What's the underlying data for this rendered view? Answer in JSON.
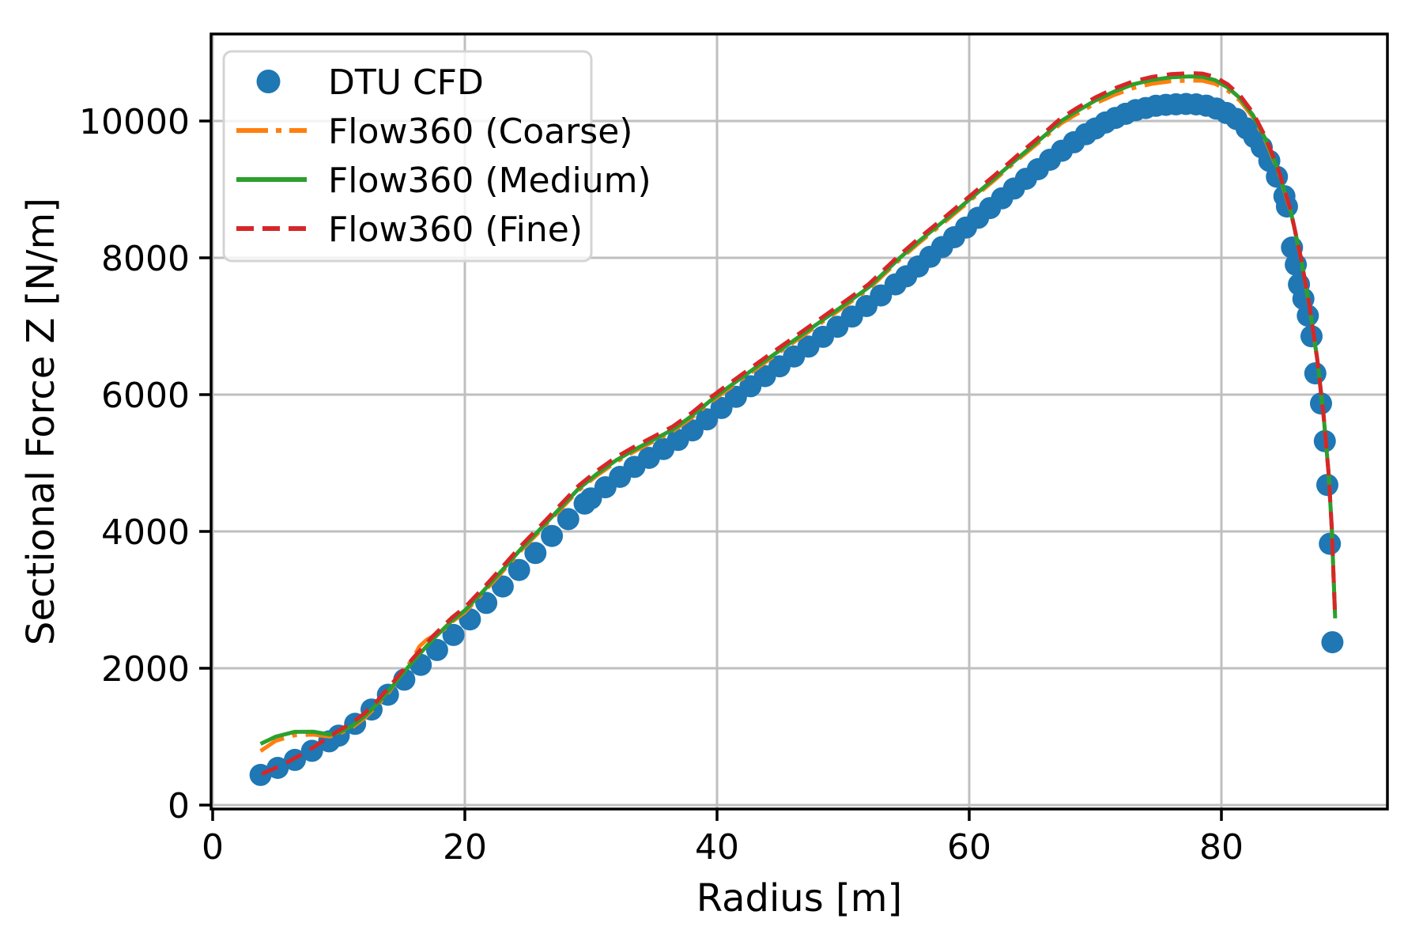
{
  "chart_data": {
    "type": "line+scatter",
    "title": "",
    "grid": {
      "visible": true,
      "color": "#bfbfbf"
    },
    "background": "#ffffff",
    "x_axis": {
      "label": "Radius [m]",
      "range": [
        -0.13,
        93.2
      ],
      "ticks": [
        {
          "v": 0,
          "label": "0"
        },
        {
          "v": 20,
          "label": "20"
        },
        {
          "v": 40,
          "label": "40"
        },
        {
          "v": 60,
          "label": "60"
        },
        {
          "v": 80,
          "label": "80"
        }
      ]
    },
    "y_axis": {
      "label": "Sectional Force Z [N/m]",
      "range": [
        -60,
        11270
      ],
      "ticks": [
        {
          "v": 0,
          "label": "0"
        },
        {
          "v": 2000,
          "label": "2000"
        },
        {
          "v": 4000,
          "label": "4000"
        },
        {
          "v": 6000,
          "label": "6000"
        },
        {
          "v": 8000,
          "label": "8000"
        },
        {
          "v": 10000,
          "label": "10000"
        }
      ]
    },
    "legend": {
      "position": "upper left",
      "frame": true,
      "frame_alpha": 0.8,
      "border_color": "#d4d4d4"
    },
    "series": [
      {
        "id": "dtu-cfd",
        "label": "DTU CFD",
        "kind": "scatter",
        "color": "#1f77b4",
        "marker_radius": 14,
        "anchors": [
          [
            3.8,
            440
          ],
          [
            5,
            530
          ],
          [
            6.2,
            630
          ],
          [
            7.4,
            745
          ],
          [
            8.6,
            865
          ],
          [
            9.8,
            990
          ],
          [
            11,
            1140
          ],
          [
            12.2,
            1330
          ],
          [
            13.5,
            1545
          ],
          [
            15,
            1800
          ],
          [
            16.2,
            2000
          ],
          [
            18,
            2300
          ],
          [
            20,
            2640
          ],
          [
            22,
            3010
          ],
          [
            24,
            3380
          ],
          [
            26,
            3760
          ],
          [
            27.5,
            4050
          ],
          [
            29,
            4330
          ],
          [
            30.5,
            4560
          ],
          [
            32,
            4760
          ],
          [
            33.5,
            4950
          ],
          [
            35,
            5120
          ],
          [
            36.5,
            5290
          ],
          [
            38,
            5470
          ],
          [
            39.5,
            5680
          ],
          [
            41,
            5900
          ],
          [
            43,
            6170
          ],
          [
            45,
            6420
          ],
          [
            47,
            6670
          ],
          [
            49,
            6920
          ],
          [
            51,
            7180
          ],
          [
            53,
            7450
          ],
          [
            55,
            7730
          ],
          [
            57,
            8030
          ],
          [
            59,
            8330
          ],
          [
            61,
            8630
          ],
          [
            63,
            8930
          ],
          [
            65,
            9230
          ],
          [
            67,
            9520
          ],
          [
            69,
            9780
          ],
          [
            71,
            10000
          ],
          [
            73,
            10150
          ],
          [
            75,
            10230
          ],
          [
            77,
            10250
          ],
          [
            78.5,
            10240
          ],
          [
            80,
            10160
          ],
          [
            81.2,
            10030
          ],
          [
            82.3,
            9840
          ],
          [
            83.3,
            9590
          ],
          [
            84.2,
            9280
          ],
          [
            85,
            8900
          ],
          [
            85.2,
            8750
          ],
          [
            85.45,
            8400
          ],
          [
            85.6,
            8150
          ],
          [
            85.9,
            7900
          ],
          [
            86.1,
            7640
          ],
          [
            86.5,
            7400
          ],
          [
            86.9,
            7120
          ],
          [
            87.2,
            6800
          ],
          [
            87.4,
            6360
          ],
          [
            87.9,
            5870
          ],
          [
            88.2,
            5320
          ],
          [
            88.4,
            4680
          ],
          [
            88.6,
            3820
          ],
          [
            88.8,
            2380
          ]
        ],
        "marker_segments": [
          [
            3.8,
            10,
            1.36
          ],
          [
            10,
            30,
            1.3
          ],
          [
            30,
            55,
            1.15
          ],
          [
            55,
            70,
            0.95
          ],
          [
            70,
            82,
            0.8
          ],
          [
            82,
            85.05,
            0.6
          ]
        ],
        "marker_tail_r": [
          85.2,
          85.6,
          85.9,
          86.15,
          86.5,
          86.85,
          87.15,
          87.45,
          87.9,
          88.2,
          88.4,
          88.6,
          88.8
        ]
      },
      {
        "id": "flow360-coarse",
        "label": "Flow360 (Coarse)",
        "kind": "line",
        "color": "#ff7f0e",
        "dash": "34 11 6 11",
        "width": 5,
        "points": [
          [
            3.8,
            790
          ],
          [
            5,
            940
          ],
          [
            6.5,
            1020
          ],
          [
            8,
            1030
          ],
          [
            9.3,
            1000
          ],
          [
            10,
            1040
          ],
          [
            11,
            1125
          ],
          [
            12,
            1265
          ],
          [
            13,
            1445
          ],
          [
            14,
            1655
          ],
          [
            15,
            1930
          ],
          [
            15.8,
            2120
          ],
          [
            16.4,
            2320
          ],
          [
            17,
            2420
          ],
          [
            17.6,
            2480
          ],
          [
            18.3,
            2560
          ],
          [
            19,
            2680
          ],
          [
            20,
            2820
          ],
          [
            21.5,
            3110
          ],
          [
            23,
            3415
          ],
          [
            24.5,
            3730
          ],
          [
            25.8,
            3975
          ],
          [
            27.5,
            4305
          ],
          [
            29,
            4595
          ],
          [
            30.5,
            4820
          ],
          [
            32,
            5015
          ],
          [
            33.5,
            5175
          ],
          [
            35,
            5320
          ],
          [
            36.5,
            5465
          ],
          [
            38,
            5665
          ],
          [
            39.5,
            5890
          ],
          [
            40.4,
            6015
          ],
          [
            42,
            6230
          ],
          [
            44,
            6495
          ],
          [
            46,
            6755
          ],
          [
            48,
            7015
          ],
          [
            50,
            7275
          ],
          [
            52,
            7540
          ],
          [
            54.5,
            7975
          ],
          [
            56,
            8215
          ],
          [
            58,
            8515
          ],
          [
            60,
            8825
          ],
          [
            62,
            9135
          ],
          [
            64,
            9455
          ],
          [
            66,
            9760
          ],
          [
            67.3,
            9965
          ],
          [
            68.5,
            10100
          ],
          [
            70,
            10255
          ],
          [
            71.5,
            10380
          ],
          [
            73,
            10480
          ],
          [
            74.5,
            10545
          ],
          [
            76,
            10580
          ],
          [
            77.5,
            10592
          ],
          [
            78.5,
            10588
          ],
          [
            79.5,
            10545
          ],
          [
            80.5,
            10445
          ],
          [
            81.5,
            10290
          ],
          [
            82.5,
            10055
          ],
          [
            83.5,
            9715
          ],
          [
            84.5,
            9265
          ],
          [
            85.5,
            8670
          ],
          [
            86.3,
            7995
          ],
          [
            87,
            7275
          ],
          [
            87.6,
            6515
          ],
          [
            88.1,
            5695
          ],
          [
            88.5,
            4845
          ],
          [
            88.75,
            4045
          ],
          [
            88.9,
            3295
          ],
          [
            89.02,
            2725
          ]
        ]
      },
      {
        "id": "flow360-medium",
        "label": "Flow360 (Medium)",
        "kind": "line",
        "color": "#2ca02c",
        "dash": null,
        "width": 5,
        "points": [
          [
            3.8,
            895
          ],
          [
            5,
            1000
          ],
          [
            6.5,
            1070
          ],
          [
            8,
            1072
          ],
          [
            9.3,
            1030
          ],
          [
            10,
            1058
          ],
          [
            11,
            1150
          ],
          [
            12,
            1290
          ],
          [
            13,
            1470
          ],
          [
            14,
            1680
          ],
          [
            15,
            1905
          ],
          [
            16,
            2125
          ],
          [
            17.5,
            2430
          ],
          [
            19,
            2700
          ],
          [
            20,
            2845
          ],
          [
            21.5,
            3135
          ],
          [
            23,
            3440
          ],
          [
            24.5,
            3755
          ],
          [
            25.8,
            4000
          ],
          [
            27.5,
            4330
          ],
          [
            29,
            4620
          ],
          [
            30.5,
            4845
          ],
          [
            32,
            5040
          ],
          [
            33.5,
            5200
          ],
          [
            35,
            5345
          ],
          [
            36.5,
            5490
          ],
          [
            38,
            5690
          ],
          [
            39.5,
            5915
          ],
          [
            40.4,
            6040
          ],
          [
            42,
            6255
          ],
          [
            44,
            6520
          ],
          [
            46,
            6780
          ],
          [
            48,
            7040
          ],
          [
            50,
            7300
          ],
          [
            52,
            7565
          ],
          [
            54.5,
            8000
          ],
          [
            56,
            8240
          ],
          [
            58,
            8540
          ],
          [
            60,
            8850
          ],
          [
            62,
            9160
          ],
          [
            64,
            9480
          ],
          [
            66,
            9790
          ],
          [
            67.3,
            10000
          ],
          [
            68.5,
            10140
          ],
          [
            70,
            10300
          ],
          [
            71.5,
            10430
          ],
          [
            73,
            10535
          ],
          [
            74.5,
            10600
          ],
          [
            76,
            10638
          ],
          [
            77.5,
            10652
          ],
          [
            78.5,
            10645
          ],
          [
            79.5,
            10598
          ],
          [
            80.5,
            10490
          ],
          [
            81.5,
            10330
          ],
          [
            82.5,
            10085
          ],
          [
            83.5,
            9735
          ],
          [
            84.5,
            9280
          ],
          [
            85.5,
            8680
          ],
          [
            86.3,
            8000
          ],
          [
            87,
            7280
          ],
          [
            87.6,
            6520
          ],
          [
            88.1,
            5700
          ],
          [
            88.5,
            4850
          ],
          [
            88.75,
            4050
          ],
          [
            88.9,
            3300
          ],
          [
            89.02,
            2730
          ]
        ]
      },
      {
        "id": "flow360-fine",
        "label": "Flow360 (Fine)",
        "kind": "line",
        "color": "#d62728",
        "dash": "22 12",
        "width": 5,
        "points": [
          [
            3.9,
            455
          ],
          [
            5,
            545
          ],
          [
            6,
            635
          ],
          [
            7,
            735
          ],
          [
            8,
            845
          ],
          [
            8.8,
            945
          ],
          [
            9.4,
            1015
          ],
          [
            10,
            1090
          ],
          [
            11,
            1195
          ],
          [
            12,
            1335
          ],
          [
            13,
            1515
          ],
          [
            14,
            1725
          ],
          [
            15,
            1950
          ],
          [
            16,
            2170
          ],
          [
            17.5,
            2475
          ],
          [
            19,
            2745
          ],
          [
            20,
            2890
          ],
          [
            21.5,
            3180
          ],
          [
            23,
            3485
          ],
          [
            24.5,
            3800
          ],
          [
            25.8,
            4045
          ],
          [
            27.5,
            4375
          ],
          [
            29,
            4665
          ],
          [
            30.5,
            4890
          ],
          [
            32,
            5085
          ],
          [
            33.5,
            5245
          ],
          [
            35,
            5390
          ],
          [
            36.5,
            5535
          ],
          [
            38,
            5735
          ],
          [
            39.5,
            5960
          ],
          [
            40.4,
            6085
          ],
          [
            42,
            6300
          ],
          [
            44,
            6565
          ],
          [
            46,
            6825
          ],
          [
            48,
            7085
          ],
          [
            50,
            7345
          ],
          [
            52,
            7610
          ],
          [
            54.5,
            8045
          ],
          [
            56,
            8285
          ],
          [
            58,
            8585
          ],
          [
            60,
            8895
          ],
          [
            62,
            9205
          ],
          [
            64,
            9525
          ],
          [
            66,
            9835
          ],
          [
            67.3,
            10045
          ],
          [
            68.5,
            10185
          ],
          [
            70,
            10345
          ],
          [
            71.5,
            10475
          ],
          [
            73,
            10580
          ],
          [
            74.5,
            10645
          ],
          [
            76,
            10685
          ],
          [
            77.5,
            10700
          ],
          [
            78.5,
            10692
          ],
          [
            79.5,
            10645
          ],
          [
            80.5,
            10535
          ],
          [
            81.5,
            10370
          ],
          [
            82.5,
            10120
          ],
          [
            83.5,
            9765
          ],
          [
            84.5,
            9300
          ],
          [
            85.5,
            8690
          ],
          [
            86.3,
            8005
          ],
          [
            87,
            7285
          ],
          [
            87.6,
            6522
          ],
          [
            88.1,
            5702
          ],
          [
            88.5,
            4852
          ],
          [
            88.75,
            4052
          ],
          [
            88.9,
            3302
          ],
          [
            89.02,
            2732
          ]
        ]
      }
    ]
  }
}
